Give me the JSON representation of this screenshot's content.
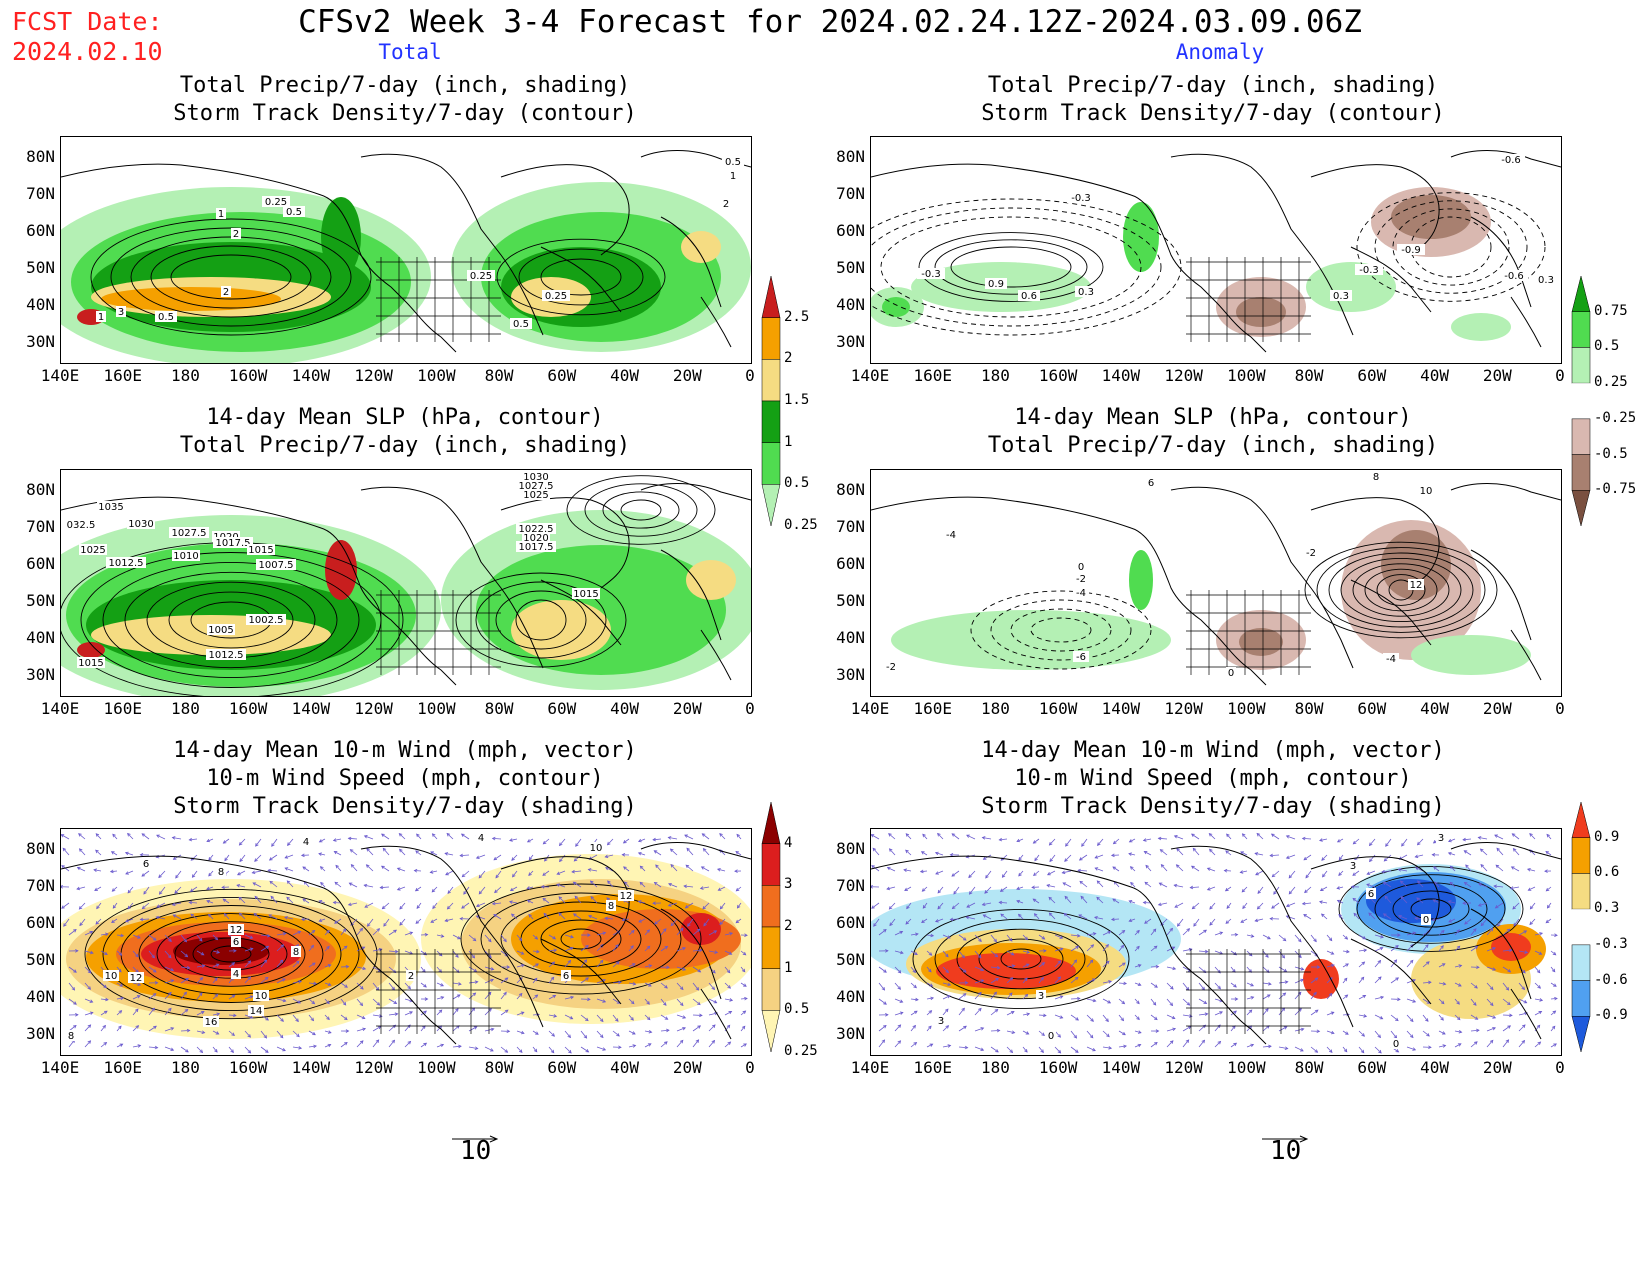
{
  "header": {
    "fcst_line1": "FCST Date:",
    "fcst_line2": "2024.02.10",
    "title": "CFSv2 Week 3-4 Forecast for 2024.02.24.12Z-2024.03.09.06Z",
    "col_total": "Total",
    "col_anomaly": "Anomaly"
  },
  "panels": {
    "p1": {
      "title1": "Total Precip/7-day (inch, shading)",
      "title2": "Storm Track Density/7-day (contour)",
      "labels": [
        "0.5",
        "1",
        "0.25",
        "0.5",
        "1",
        "2",
        "2",
        "3",
        "1",
        "0.5",
        "0.25",
        "0.25",
        "0.5",
        "2"
      ]
    },
    "p2": {
      "title1": "Total Precip/7-day (inch, shading)",
      "title2": "Storm Track Density/7-day (contour)",
      "labels": [
        "-0.3",
        "-0.3",
        "0.9",
        "0.6",
        "0.3",
        "0.3",
        "-0.9",
        "-0.3",
        "-0.6",
        "0.3",
        "-0.6"
      ]
    },
    "p3": {
      "title1": "14-day Mean SLP (hPa, contour)",
      "title2": "Total Precip/7-day (inch, shading)",
      "labels": [
        "1035",
        "032.5",
        "1030",
        "1025",
        "1012.5",
        "1010",
        "1027.5",
        "1020",
        "1017.5",
        "1015",
        "1007.5",
        "1005",
        "1002.5",
        "1012.5",
        "1015",
        "1030",
        "1027.5",
        "1025",
        "1022.5",
        "1020",
        "1017.5",
        "1015"
      ]
    },
    "p4": {
      "title1": "14-day Mean SLP (hPa, contour)",
      "title2": "Total Precip/7-day (inch, shading)",
      "labels": [
        "6",
        "-4",
        "0",
        "-2",
        "-4",
        "-6",
        "-2",
        "8",
        "10",
        "-2",
        "12",
        "-4",
        "0"
      ]
    },
    "p5": {
      "title1": "14-day Mean 10-m Wind (mph, vector)",
      "title2": "10-m Wind Speed (mph, contour)",
      "title3": "Storm Track Density/7-day (shading)",
      "labels": [
        "4",
        "6",
        "8",
        "12",
        "6",
        "8",
        "4",
        "10",
        "12",
        "10",
        "14",
        "16",
        "8",
        "4",
        "10",
        "12",
        "8",
        "6",
        "2"
      ]
    },
    "p6": {
      "title1": "14-day Mean 10-m Wind (mph, vector)",
      "title2": "10-m Wind Speed (mph, contour)",
      "title3": "Storm Track Density/7-day (shading)",
      "labels": [
        "3",
        "0",
        "3",
        "3",
        "0",
        "6",
        "0",
        "3"
      ]
    }
  },
  "axes": {
    "lat_labels": [
      "80N",
      "70N",
      "60N",
      "50N",
      "40N",
      "30N"
    ],
    "lon_labels": [
      "140E",
      "160E",
      "180",
      "160W",
      "140W",
      "120W",
      "100W",
      "80W",
      "60W",
      "40W",
      "20W",
      "0"
    ]
  },
  "colorbars": {
    "precip_total": {
      "labels": [
        "2.5",
        "2",
        "1.5",
        "1",
        "0.5",
        "0.25"
      ],
      "colors": [
        "#c81e1e",
        "#f5a000",
        "#f5dc82",
        "#14a014",
        "#50dc50",
        "#b4f0b4"
      ]
    },
    "precip_anom": {
      "labels": [
        "0.75",
        "0.5",
        "0.25",
        "-0.25",
        "-0.5",
        "-0.75"
      ],
      "colors": [
        "#14a014",
        "#50dc50",
        "#b4f0b4",
        "#ffffff",
        "#d9b8b0",
        "#a88070",
        "#7a5040"
      ]
    },
    "storm_total": {
      "labels": [
        "4",
        "3",
        "2",
        "1",
        "0.5",
        "0.25"
      ],
      "colors": [
        "#8b0000",
        "#dc1e1e",
        "#f06e1e",
        "#f5a000",
        "#f5d282",
        "#fff5b4"
      ]
    },
    "storm_anom": {
      "labels": [
        "0.9",
        "0.6",
        "0.3",
        "-0.3",
        "-0.6",
        "-0.9"
      ],
      "colors": [
        "#f03c1e",
        "#f5a000",
        "#f5dc82",
        "#ffffff",
        "#b4e6f5",
        "#50a0f0",
        "#1e5adc"
      ]
    }
  },
  "vector_refs": {
    "left": "10",
    "right": "10"
  },
  "colors": {
    "fcst": "#ff2020",
    "col_head": "#2233ff",
    "vector": "#6a5acd"
  }
}
